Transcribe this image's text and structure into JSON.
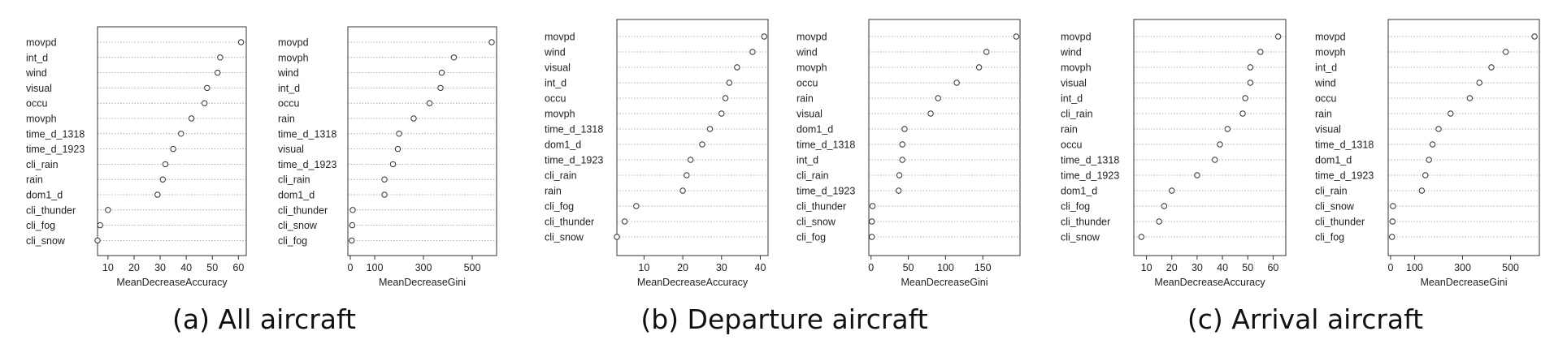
{
  "captions": [
    "(a) All aircraft",
    "(b) Departure aircraft",
    "(c) Arrival aircraft"
  ],
  "chart_data": [
    {
      "type": "scatter",
      "panel": "a",
      "side": "left",
      "xlabel": "MeanDecreaseAccuracy",
      "xlim": [
        6,
        63
      ],
      "xticks": [
        10,
        20,
        30,
        40,
        50,
        60
      ],
      "categories": [
        "movpd",
        "int_d",
        "wind",
        "visual",
        "occu",
        "movph",
        "time_d_1318",
        "time_d_1923",
        "cli_rain",
        "rain",
        "dom1_d",
        "cli_thunder",
        "cli_fog",
        "cli_snow"
      ],
      "values": [
        61,
        53,
        52,
        48,
        47,
        42,
        38,
        35,
        32,
        31,
        29,
        10,
        7,
        6
      ],
      "grid": true
    },
    {
      "type": "scatter",
      "panel": "a",
      "side": "right",
      "xlabel": "MeanDecreaseGini",
      "xlim": [
        -10,
        600
      ],
      "xticks": [
        0,
        100,
        300,
        500
      ],
      "xticklabels": [
        "0",
        "100",
        "300",
        "500"
      ],
      "categories": [
        "movpd",
        "movph",
        "wind",
        "int_d",
        "occu",
        "rain",
        "time_d_1318",
        "visual",
        "time_d_1923",
        "cli_rain",
        "dom1_d",
        "cli_thunder",
        "cli_snow",
        "cli_fog"
      ],
      "values": [
        580,
        425,
        375,
        370,
        325,
        260,
        200,
        195,
        175,
        140,
        140,
        10,
        8,
        6
      ],
      "grid": true
    },
    {
      "type": "scatter",
      "panel": "b",
      "side": "left",
      "xlabel": "MeanDecreaseAccuracy",
      "xlim": [
        3,
        42
      ],
      "xticks": [
        10,
        20,
        30,
        40
      ],
      "categories": [
        "movpd",
        "wind",
        "visual",
        "int_d",
        "occu",
        "movph",
        "time_d_1318",
        "dom1_d",
        "time_d_1923",
        "cli_rain",
        "rain",
        "cli_fog",
        "cli_thunder",
        "cli_snow"
      ],
      "values": [
        41,
        38,
        34,
        32,
        31,
        30,
        27,
        25,
        22,
        21,
        20,
        8,
        5,
        3
      ],
      "grid": true
    },
    {
      "type": "scatter",
      "panel": "b",
      "side": "right",
      "xlabel": "MeanDecreaseGini",
      "xlim": [
        -3,
        200
      ],
      "xticks": [
        0,
        50,
        100,
        150
      ],
      "categories": [
        "movpd",
        "wind",
        "movph",
        "occu",
        "rain",
        "visual",
        "dom1_d",
        "time_d_1318",
        "int_d",
        "cli_rain",
        "time_d_1923",
        "cli_thunder",
        "cli_snow",
        "cli_fog"
      ],
      "values": [
        195,
        155,
        145,
        115,
        90,
        80,
        45,
        42,
        42,
        38,
        37,
        2,
        1,
        1
      ],
      "grid": true
    },
    {
      "type": "scatter",
      "panel": "c",
      "side": "left",
      "xlabel": "MeanDecreaseAccuracy",
      "xlim": [
        5,
        65
      ],
      "xticks": [
        10,
        20,
        30,
        40,
        50,
        60
      ],
      "categories": [
        "movpd",
        "wind",
        "movph",
        "visual",
        "int_d",
        "cli_rain",
        "rain",
        "occu",
        "time_d_1318",
        "time_d_1923",
        "dom1_d",
        "cli_fog",
        "cli_thunder",
        "cli_snow"
      ],
      "values": [
        62,
        55,
        51,
        51,
        49,
        48,
        42,
        39,
        37,
        30,
        20,
        17,
        15,
        8
      ],
      "grid": true
    },
    {
      "type": "scatter",
      "panel": "c",
      "side": "right",
      "xlabel": "MeanDecreaseGini",
      "xlim": [
        -10,
        620
      ],
      "xticks": [
        0,
        100,
        300,
        500
      ],
      "xticklabels": [
        "0",
        "100",
        "300",
        "500"
      ],
      "categories": [
        "movpd",
        "movph",
        "int_d",
        "wind",
        "occu",
        "rain",
        "visual",
        "time_d_1318",
        "dom1_d",
        "time_d_1923",
        "cli_rain",
        "cli_snow",
        "cli_thunder",
        "cli_fog"
      ],
      "values": [
        600,
        480,
        420,
        370,
        330,
        250,
        200,
        175,
        160,
        145,
        130,
        10,
        8,
        6
      ],
      "grid": true
    }
  ]
}
